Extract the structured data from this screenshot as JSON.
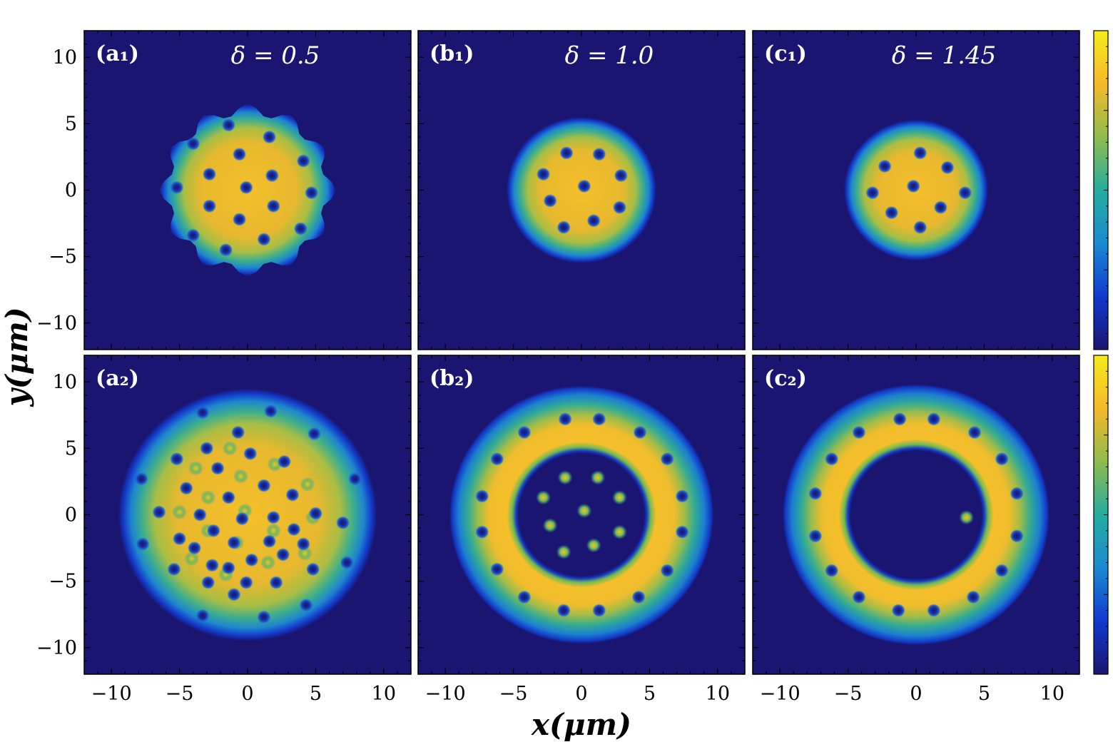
{
  "colors": {
    "background": "#1a1570",
    "colormap": [
      "#1a1570",
      "#1239d0",
      "#1a8ad2",
      "#25ad9f",
      "#8fbc4c",
      "#f6b82a",
      "#f5ec1c"
    ]
  },
  "chart_data": {
    "type": "heatmap",
    "xlabel": "x(μm)",
    "ylabel": "y(μm)",
    "xlim": [
      -12,
      12
    ],
    "ylim": [
      -12,
      12
    ],
    "xticks": [
      -10,
      -5,
      0,
      5,
      10
    ],
    "yticks": [
      10,
      5,
      0,
      -5,
      -10
    ],
    "xtick_labels": [
      "−10",
      "−5",
      "0",
      "5",
      "10"
    ],
    "ytick_labels": [
      "10",
      "5",
      "0",
      "−5",
      "−10"
    ],
    "colorbar": {
      "present": true,
      "tick_labels": []
    },
    "panels": [
      {
        "label": "(a₁)",
        "title": "δ = 0.5",
        "row": 1,
        "col": 1,
        "density": {
          "shape": "rough_disk",
          "radius": 6.5,
          "peak": 0.85,
          "hole": 0
        },
        "vortices": [
          [
            -1.4,
            4.9
          ],
          [
            1.6,
            4.0
          ],
          [
            -4.0,
            3.5
          ],
          [
            -0.6,
            2.7
          ],
          [
            4.1,
            2.2
          ],
          [
            -2.8,
            1.2
          ],
          [
            1.8,
            1.1
          ],
          [
            -5.2,
            0.2
          ],
          [
            -0.1,
            0.2
          ],
          [
            4.7,
            -0.2
          ],
          [
            -2.8,
            -1.2
          ],
          [
            1.9,
            -1.2
          ],
          [
            -0.6,
            -2.2
          ],
          [
            3.9,
            -2.9
          ],
          [
            -4.0,
            -3.4
          ],
          [
            1.2,
            -3.7
          ],
          [
            -1.6,
            -4.5
          ]
        ],
        "bright_spots": []
      },
      {
        "label": "(b₁)",
        "title": "δ = 1.0",
        "row": 1,
        "col": 2,
        "density": {
          "shape": "disk",
          "radius": 5.5,
          "peak": 0.95,
          "hole": 0
        },
        "vortices": [
          [
            -1.1,
            2.8
          ],
          [
            1.3,
            2.7
          ],
          [
            -2.8,
            1.2
          ],
          [
            2.9,
            1.1
          ],
          [
            0.2,
            0.3
          ],
          [
            -2.3,
            -0.8
          ],
          [
            2.8,
            -1.3
          ],
          [
            -1.3,
            -2.8
          ],
          [
            0.9,
            -2.3
          ]
        ],
        "bright_spots": []
      },
      {
        "label": "(c₁)",
        "title": "δ = 1.45",
        "row": 1,
        "col": 3,
        "density": {
          "shape": "disk",
          "radius": 5.3,
          "peak": 0.95,
          "hole": 0
        },
        "vortices": [
          [
            0.3,
            2.8
          ],
          [
            -2.3,
            1.8
          ],
          [
            2.3,
            1.7
          ],
          [
            -3.2,
            -0.2
          ],
          [
            -0.2,
            0.3
          ],
          [
            3.6,
            -0.2
          ],
          [
            -1.8,
            -1.7
          ],
          [
            1.8,
            -1.3
          ],
          [
            0.3,
            -2.8
          ]
        ],
        "bright_spots": []
      },
      {
        "label": "(a₂)",
        "title": "",
        "row": 2,
        "col": 1,
        "density": {
          "shape": "disk",
          "radius": 9.5,
          "peak": 0.9,
          "hole": 0
        },
        "vortices": [
          [
            -3.3,
            7.7
          ],
          [
            1.7,
            7.8
          ],
          [
            -7.8,
            2.7
          ],
          [
            7.9,
            2.7
          ],
          [
            4.9,
            6.1
          ],
          [
            -0.7,
            6.2
          ],
          [
            -3.0,
            5.0
          ],
          [
            0.2,
            4.6
          ],
          [
            -5.2,
            4.2
          ],
          [
            2.7,
            4.0
          ],
          [
            -2.2,
            3.5
          ],
          [
            -4.5,
            2.0
          ],
          [
            1.2,
            2.2
          ],
          [
            3.3,
            1.5
          ],
          [
            -1.4,
            1.3
          ],
          [
            -6.5,
            0.2
          ],
          [
            -3.5,
            0.0
          ],
          [
            -0.4,
            -0.3
          ],
          [
            1.9,
            -0.2
          ],
          [
            5.0,
            0.1
          ],
          [
            -2.5,
            -1.2
          ],
          [
            3.4,
            -1.1
          ],
          [
            -5.0,
            -1.8
          ],
          [
            7.0,
            -0.6
          ],
          [
            -1.0,
            -2.1
          ],
          [
            1.6,
            -2.0
          ],
          [
            -3.9,
            -2.5
          ],
          [
            4.1,
            -2.2
          ],
          [
            -7.7,
            -2.2
          ],
          [
            -2.6,
            -3.8
          ],
          [
            0.3,
            -3.4
          ],
          [
            2.6,
            -3.0
          ],
          [
            -1.4,
            -4.0
          ],
          [
            4.8,
            -4.1
          ],
          [
            -5.4,
            -4.1
          ],
          [
            -0.1,
            -5.1
          ],
          [
            7.3,
            -3.6
          ],
          [
            -2.9,
            -5.1
          ],
          [
            2.1,
            -5.1
          ],
          [
            -1.0,
            -6.0
          ],
          [
            4.3,
            -6.8
          ],
          [
            -3.3,
            -7.6
          ],
          [
            1.2,
            -7.7
          ]
        ],
        "bright_spots": [
          [
            -1.3,
            5.0
          ],
          [
            2.0,
            3.8
          ],
          [
            -3.8,
            3.5
          ],
          [
            -0.5,
            2.9
          ],
          [
            4.4,
            2.3
          ],
          [
            -2.9,
            1.3
          ],
          [
            -0.2,
            0.3
          ],
          [
            -5.0,
            0.2
          ],
          [
            4.8,
            -0.2
          ],
          [
            -2.9,
            -1.2
          ],
          [
            1.9,
            -1.2
          ],
          [
            -0.8,
            -2.1
          ],
          [
            4.2,
            -2.9
          ],
          [
            -4.1,
            -3.3
          ],
          [
            1.5,
            -3.6
          ],
          [
            -1.6,
            -4.5
          ]
        ]
      },
      {
        "label": "(b₂)",
        "title": "",
        "row": 2,
        "col": 2,
        "density": {
          "shape": "annulus",
          "radius": 9.7,
          "peak": 0.95,
          "hole": 4.8
        },
        "vortices": [
          [
            -1.2,
            7.2
          ],
          [
            1.3,
            7.2
          ],
          [
            -4.2,
            6.2
          ],
          [
            4.3,
            6.2
          ],
          [
            -6.2,
            4.2
          ],
          [
            6.3,
            4.2
          ],
          [
            -7.3,
            1.4
          ],
          [
            7.4,
            1.4
          ],
          [
            -7.3,
            -1.3
          ],
          [
            7.4,
            -1.3
          ],
          [
            -6.2,
            -4.1
          ],
          [
            6.3,
            -4.2
          ],
          [
            -4.2,
            -6.2
          ],
          [
            4.2,
            -6.2
          ],
          [
            -1.3,
            -7.2
          ],
          [
            1.3,
            -7.2
          ]
        ],
        "bright_spots": [
          [
            -1.2,
            2.8
          ],
          [
            1.2,
            2.8
          ],
          [
            -2.8,
            1.3
          ],
          [
            2.8,
            1.3
          ],
          [
            0.2,
            0.3
          ],
          [
            -2.3,
            -0.8
          ],
          [
            2.8,
            -1.3
          ],
          [
            -1.3,
            -2.8
          ],
          [
            0.9,
            -2.3
          ]
        ]
      },
      {
        "label": "(c₂)",
        "title": "",
        "row": 2,
        "col": 3,
        "density": {
          "shape": "annulus",
          "radius": 9.8,
          "peak": 0.95,
          "hole": 5.0
        },
        "vortices": [
          [
            -1.2,
            7.2
          ],
          [
            1.3,
            7.2
          ],
          [
            -4.2,
            6.2
          ],
          [
            4.3,
            6.2
          ],
          [
            -6.2,
            4.2
          ],
          [
            6.3,
            4.2
          ],
          [
            -7.4,
            1.6
          ],
          [
            7.4,
            1.6
          ],
          [
            -7.4,
            -1.6
          ],
          [
            7.4,
            -1.6
          ],
          [
            -6.2,
            -4.2
          ],
          [
            6.3,
            -4.2
          ],
          [
            -4.2,
            -6.2
          ],
          [
            4.2,
            -6.2
          ],
          [
            -1.3,
            -7.2
          ],
          [
            1.3,
            -7.2
          ]
        ],
        "bright_spots": [
          [
            3.7,
            -0.2
          ]
        ]
      }
    ]
  }
}
